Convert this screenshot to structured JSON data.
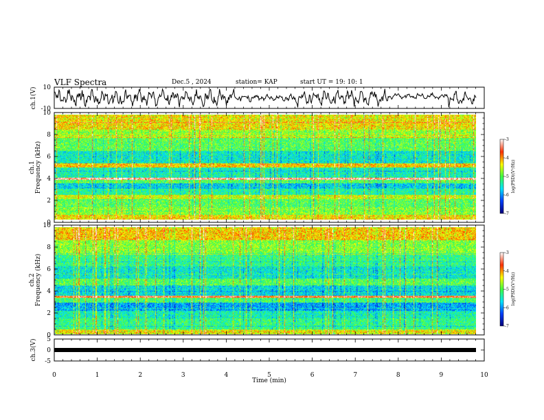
{
  "header": {
    "title": "VLF Spectra",
    "date": "Dec.5 , 2024",
    "station": "station= KAP",
    "start_ut": "start UT = 19: 10: 1"
  },
  "chart_data": [
    {
      "type": "line",
      "name": "ch1-waveform",
      "ylabel": "ch.1(V)",
      "ylim": [
        -10,
        10
      ],
      "yticks": [
        "10",
        "-10"
      ],
      "xlim": [
        0,
        10
      ],
      "note_values": "dense waveform, amplitude mostly within -9..9 V, quieter 4.2-5.6 min and 7.8-9.2 min"
    },
    {
      "type": "heatmap",
      "name": "ch1-spectrogram",
      "ylabel": "Frequency (kHz)",
      "ylabel_ch": "ch.1",
      "ylim": [
        0,
        10
      ],
      "yticks": [
        "0",
        "2",
        "4",
        "6",
        "8",
        "10"
      ],
      "xlim": [
        0,
        9.85
      ],
      "colorbar": {
        "label": "log(PSD)(V²/Hz)",
        "range": [
          -7,
          -3
        ],
        "ticks": [
          "-3",
          "-4",
          "-5",
          "-6",
          "-7"
        ]
      },
      "bands_khz": [
        {
          "f0": 0.0,
          "f1": 0.5,
          "level": -4.3
        },
        {
          "f0": 0.5,
          "f1": 1.2,
          "level": -4.8
        },
        {
          "f0": 1.2,
          "f1": 2.0,
          "level": -5.0
        },
        {
          "f0": 2.0,
          "f1": 2.4,
          "level": -4.5
        },
        {
          "f0": 2.4,
          "f1": 3.0,
          "level": -5.3
        },
        {
          "f0": 3.0,
          "f1": 3.5,
          "level": -5.7
        },
        {
          "f0": 3.5,
          "f1": 3.8,
          "level": -5.0
        },
        {
          "f0": 3.8,
          "f1": 4.0,
          "level": -3.2
        },
        {
          "f0": 4.0,
          "f1": 5.0,
          "level": -5.4
        },
        {
          "f0": 5.0,
          "f1": 5.4,
          "level": -4.2
        },
        {
          "f0": 5.4,
          "f1": 6.6,
          "level": -5.5
        },
        {
          "f0": 6.6,
          "f1": 7.8,
          "level": -5.0
        },
        {
          "f0": 7.8,
          "f1": 8.6,
          "level": -4.7
        },
        {
          "f0": 8.6,
          "f1": 10.0,
          "level": -4.3
        }
      ]
    },
    {
      "type": "heatmap",
      "name": "ch2-spectrogram",
      "ylabel": "Frequency (kHz)",
      "ylabel_ch": "ch.2",
      "ylim": [
        0,
        10
      ],
      "yticks": [
        "0",
        "2",
        "4",
        "6",
        "8",
        "10"
      ],
      "xlim": [
        0,
        9.85
      ],
      "colorbar": {
        "label": "log(PSD)(V²/Hz)",
        "range": [
          -7,
          -3
        ],
        "ticks": [
          "-3",
          "-4",
          "-5",
          "-6",
          "-7"
        ]
      },
      "bands_khz": [
        {
          "f0": 0.0,
          "f1": 0.5,
          "level": -4.5
        },
        {
          "f0": 0.5,
          "f1": 1.5,
          "level": -5.2
        },
        {
          "f0": 1.5,
          "f1": 2.2,
          "level": -5.4
        },
        {
          "f0": 2.2,
          "f1": 3.0,
          "level": -5.9
        },
        {
          "f0": 3.0,
          "f1": 3.4,
          "level": -5.1
        },
        {
          "f0": 3.4,
          "f1": 3.6,
          "level": -3.6
        },
        {
          "f0": 3.6,
          "f1": 4.6,
          "level": -5.6
        },
        {
          "f0": 4.6,
          "f1": 5.2,
          "level": -5.0
        },
        {
          "f0": 5.2,
          "f1": 6.4,
          "level": -5.5
        },
        {
          "f0": 6.4,
          "f1": 7.6,
          "level": -5.2
        },
        {
          "f0": 7.6,
          "f1": 8.8,
          "level": -4.8
        },
        {
          "f0": 8.8,
          "f1": 10.0,
          "level": -4.2
        }
      ]
    },
    {
      "type": "line",
      "name": "ch3-trace",
      "ylabel": "ch.3(V)",
      "ylim": [
        -5,
        5
      ],
      "yticks": [
        "5",
        "0",
        "-5"
      ],
      "xlim": [
        0,
        10
      ],
      "xlabel": "Time (min)",
      "xticks": [
        "0",
        "1",
        "2",
        "3",
        "4",
        "5",
        "6",
        "7",
        "8",
        "9",
        "10"
      ],
      "value_v": 0.0
    }
  ],
  "colors": {
    "axis": "#000000",
    "trace": "#000000",
    "colormap": [
      "#00007a",
      "#0040ff",
      "#00e5ff",
      "#40ff40",
      "#ffff00",
      "#ff3000",
      "#ffffff"
    ]
  }
}
